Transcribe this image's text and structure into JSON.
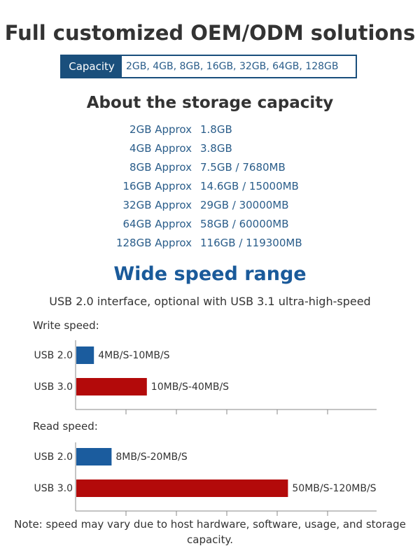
{
  "title": "Full customized OEM/ODM solutions",
  "capacity_box": {
    "label": "Capacity",
    "value": "2GB, 4GB, 8GB, 16GB, 32GB, 64GB, 128GB"
  },
  "about": {
    "heading": "About the storage capacity",
    "rows": [
      {
        "size": "2GB Approx",
        "actual": "1.8GB"
      },
      {
        "size": "4GB Approx",
        "actual": "3.8GB"
      },
      {
        "size": "8GB Approx",
        "actual": "7.5GB / 7680MB"
      },
      {
        "size": "16GB Approx",
        "actual": "14.6GB / 15000MB"
      },
      {
        "size": "32GB Approx",
        "actual": "29GB / 30000MB"
      },
      {
        "size": "64GB Approx",
        "actual": "58GB / 60000MB"
      },
      {
        "size": "128GB Approx",
        "actual": "116GB / 119300MB"
      }
    ]
  },
  "speed": {
    "heading": "Wide speed range",
    "subtitle": "USB 2.0 interface, optional with USB 3.1 ultra-high-speed"
  },
  "colors": {
    "usb2": "#1b5c9e",
    "usb3": "#b30a0a",
    "dark_blue": "#1a4f7c",
    "axis": "#888888"
  },
  "chart_data": [
    {
      "type": "bar",
      "title": "Write speed:",
      "categories": [
        "USB 2.0",
        "USB 3.0"
      ],
      "values": [
        10,
        40
      ],
      "data_labels": [
        "4MB/S-10MB/S",
        "10MB/S-40MB/S"
      ],
      "unit": "MB/S",
      "xlim": [
        0,
        120
      ]
    },
    {
      "type": "bar",
      "title": "Read speed:",
      "categories": [
        "USB 2.0",
        "USB 3.0"
      ],
      "values": [
        20,
        120
      ],
      "data_labels": [
        "8MB/S-20MB/S",
        "50MB/S-120MB/S"
      ],
      "unit": "MB/S",
      "xlim": [
        0,
        120
      ]
    }
  ],
  "note": "Note: speed may vary due to host hardware, software, usage, and storage capacity."
}
